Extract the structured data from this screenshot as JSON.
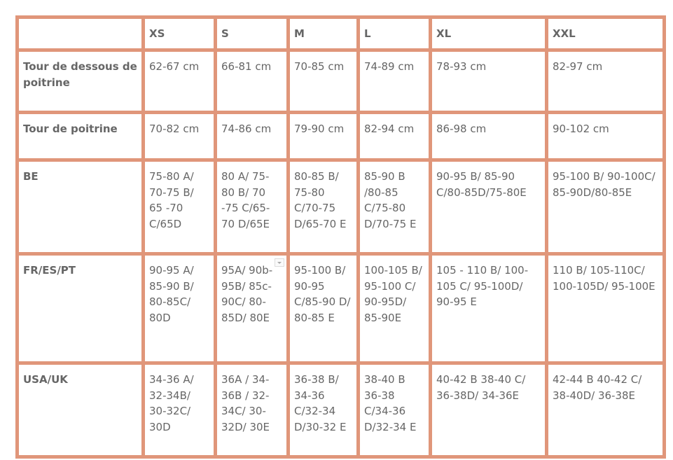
{
  "accent_color": "#e0967a",
  "text_color": "#666666",
  "headers": [
    "",
    "XS",
    "S",
    "M",
    "L",
    "XL",
    "XXL"
  ],
  "rows": [
    {
      "label": "Tour de dessous de poitrine",
      "cells": [
        "62-67 cm",
        "66-81 cm",
        "70-85 cm",
        "74-89 cm",
        "78-93 cm",
        "82-97 cm"
      ]
    },
    {
      "label": "Tour de poitrine",
      "cells": [
        "70-82 cm",
        "74-86 cm",
        "79-90 cm",
        "82-94 cm",
        "86-98 cm",
        "90-102 cm"
      ]
    },
    {
      "label": "BE",
      "cells": [
        "75-80 A/ 70-75 B/ 65 -70 C/65D",
        "80 A/ 75-80 B/ 70 -75 C/65-70 D/65E",
        "80-85 B/ 75-80 C/70-75 D/65-70 E",
        "85-90 B /80-85 C/75-80 D/70-75 E",
        "90-95 B/ 85-90 C/80-85D/75-80E",
        "95-100 B/ 90-100C/ 85-90D/80-85E"
      ]
    },
    {
      "label": "FR/ES/PT",
      "cells": [
        "90-95 A/ 85-90 B/ 80-85C/ 80D",
        "95A/ 90b-95B/ 85c-90C/ 80-85D/ 80E",
        "95-100 B/ 90-95 C/85-90 D/ 80-85 E",
        "100-105 B/ 95-100 C/ 90-95D/ 85-90E",
        "105 - 110 B/ 100-105 C/ 95-100D/ 90-95 E",
        "110 B/ 105-110C/ 100-105D/ 95-100E"
      ]
    },
    {
      "label": "USA/UK",
      "cells": [
        "34-36 A/ 32-34B/ 30-32C/ 30D",
        "36A / 34-36B / 32-34C/ 30-32D/ 30E",
        "36-38 B/ 34-36 C/32-34 D/30-32 E",
        "38-40 B 36-38 C/34-36 D/32-34 E",
        "40-42 B 38-40 C/ 36-38D/ 34-36E",
        "42-44 B 40-42 C/ 38-40D/ 36-38E"
      ]
    }
  ]
}
